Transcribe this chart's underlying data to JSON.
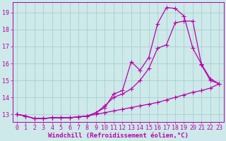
{
  "xlabel": "Windchill (Refroidissement éolien,°C)",
  "bg_color": "#cde9e9",
  "grid_color": "#aacfcf",
  "line_color": "#bb00aa",
  "xlim": [
    -0.5,
    23.5
  ],
  "ylim": [
    12.55,
    19.6
  ],
  "xticks": [
    0,
    1,
    2,
    3,
    4,
    5,
    6,
    7,
    8,
    9,
    10,
    11,
    12,
    13,
    14,
    15,
    16,
    17,
    18,
    19,
    20,
    21,
    22,
    23
  ],
  "yticks": [
    13,
    14,
    15,
    16,
    17,
    18,
    19
  ],
  "series1_x": [
    0,
    1,
    2,
    3,
    4,
    5,
    6,
    7,
    8,
    9,
    10,
    11,
    12,
    13,
    14,
    15,
    16,
    17,
    18,
    19,
    20,
    21,
    22,
    23
  ],
  "series1_y": [
    13.0,
    12.9,
    12.75,
    12.75,
    12.8,
    12.8,
    12.8,
    12.85,
    12.9,
    13.0,
    13.1,
    13.2,
    13.3,
    13.4,
    13.5,
    13.6,
    13.7,
    13.85,
    14.0,
    14.15,
    14.3,
    14.4,
    14.55,
    14.8
  ],
  "series2_x": [
    0,
    1,
    2,
    3,
    4,
    5,
    6,
    7,
    8,
    9,
    10,
    11,
    12,
    13,
    14,
    15,
    16,
    17,
    18,
    19,
    20,
    21,
    22,
    23
  ],
  "series2_y": [
    13.0,
    12.9,
    12.75,
    12.75,
    12.8,
    12.8,
    12.8,
    12.85,
    12.9,
    13.1,
    13.5,
    14.0,
    14.2,
    14.5,
    15.0,
    15.7,
    16.9,
    17.1,
    18.4,
    18.5,
    18.5,
    15.9,
    15.0,
    14.8
  ],
  "series3_x": [
    0,
    1,
    2,
    3,
    4,
    5,
    6,
    7,
    8,
    9,
    10,
    11,
    12,
    13,
    14,
    15,
    16,
    17,
    18,
    19,
    20,
    21,
    22,
    23
  ],
  "series3_y": [
    13.0,
    12.9,
    12.75,
    12.75,
    12.8,
    12.8,
    12.8,
    12.85,
    12.9,
    13.1,
    13.4,
    14.2,
    14.4,
    16.1,
    15.6,
    16.35,
    18.35,
    19.3,
    19.25,
    18.8,
    16.9,
    15.95,
    15.1,
    14.8
  ],
  "marker": "+",
  "markersize": 4.0,
  "linewidth": 0.9,
  "xlabel_fontsize": 6.5,
  "tick_fontsize": 6.0,
  "tick_color": "#bb00aa",
  "xlabel_color": "#bb00aa",
  "spine_color": "#aa00aa"
}
